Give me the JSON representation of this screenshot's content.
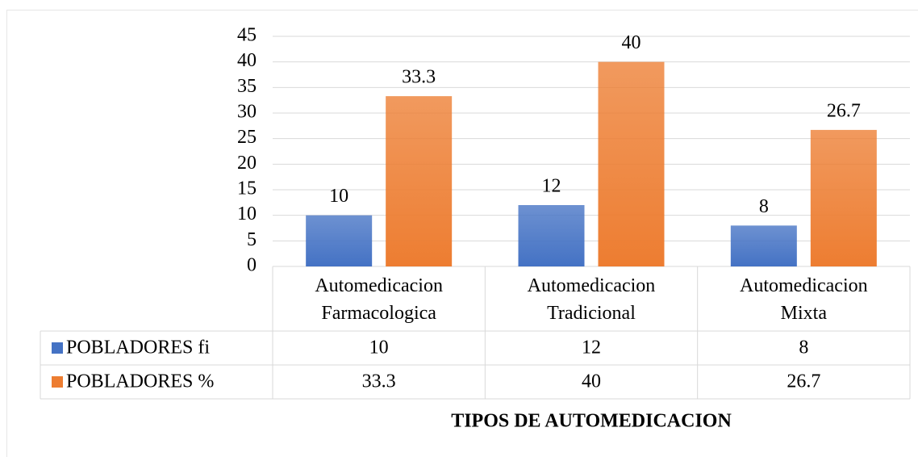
{
  "chart_data": {
    "type": "bar",
    "x_label": "TIPOS DE AUTOMEDICACION",
    "categories": [
      "Automedicacion Farmacologica",
      "Automedicacion Tradicional",
      "Automedicacion Mixta"
    ],
    "series": [
      {
        "name": "POBLADORES fi",
        "color": "#4472c4",
        "values": [
          10,
          12,
          8
        ]
      },
      {
        "name": "POBLADORES %",
        "color": "#ed7d31",
        "values": [
          33.3,
          40,
          26.7
        ]
      }
    ],
    "ylim": [
      0,
      45
    ],
    "yticks": [
      0,
      5,
      10,
      15,
      20,
      25,
      30,
      35,
      40,
      45
    ],
    "grid": true,
    "data_table": true
  }
}
